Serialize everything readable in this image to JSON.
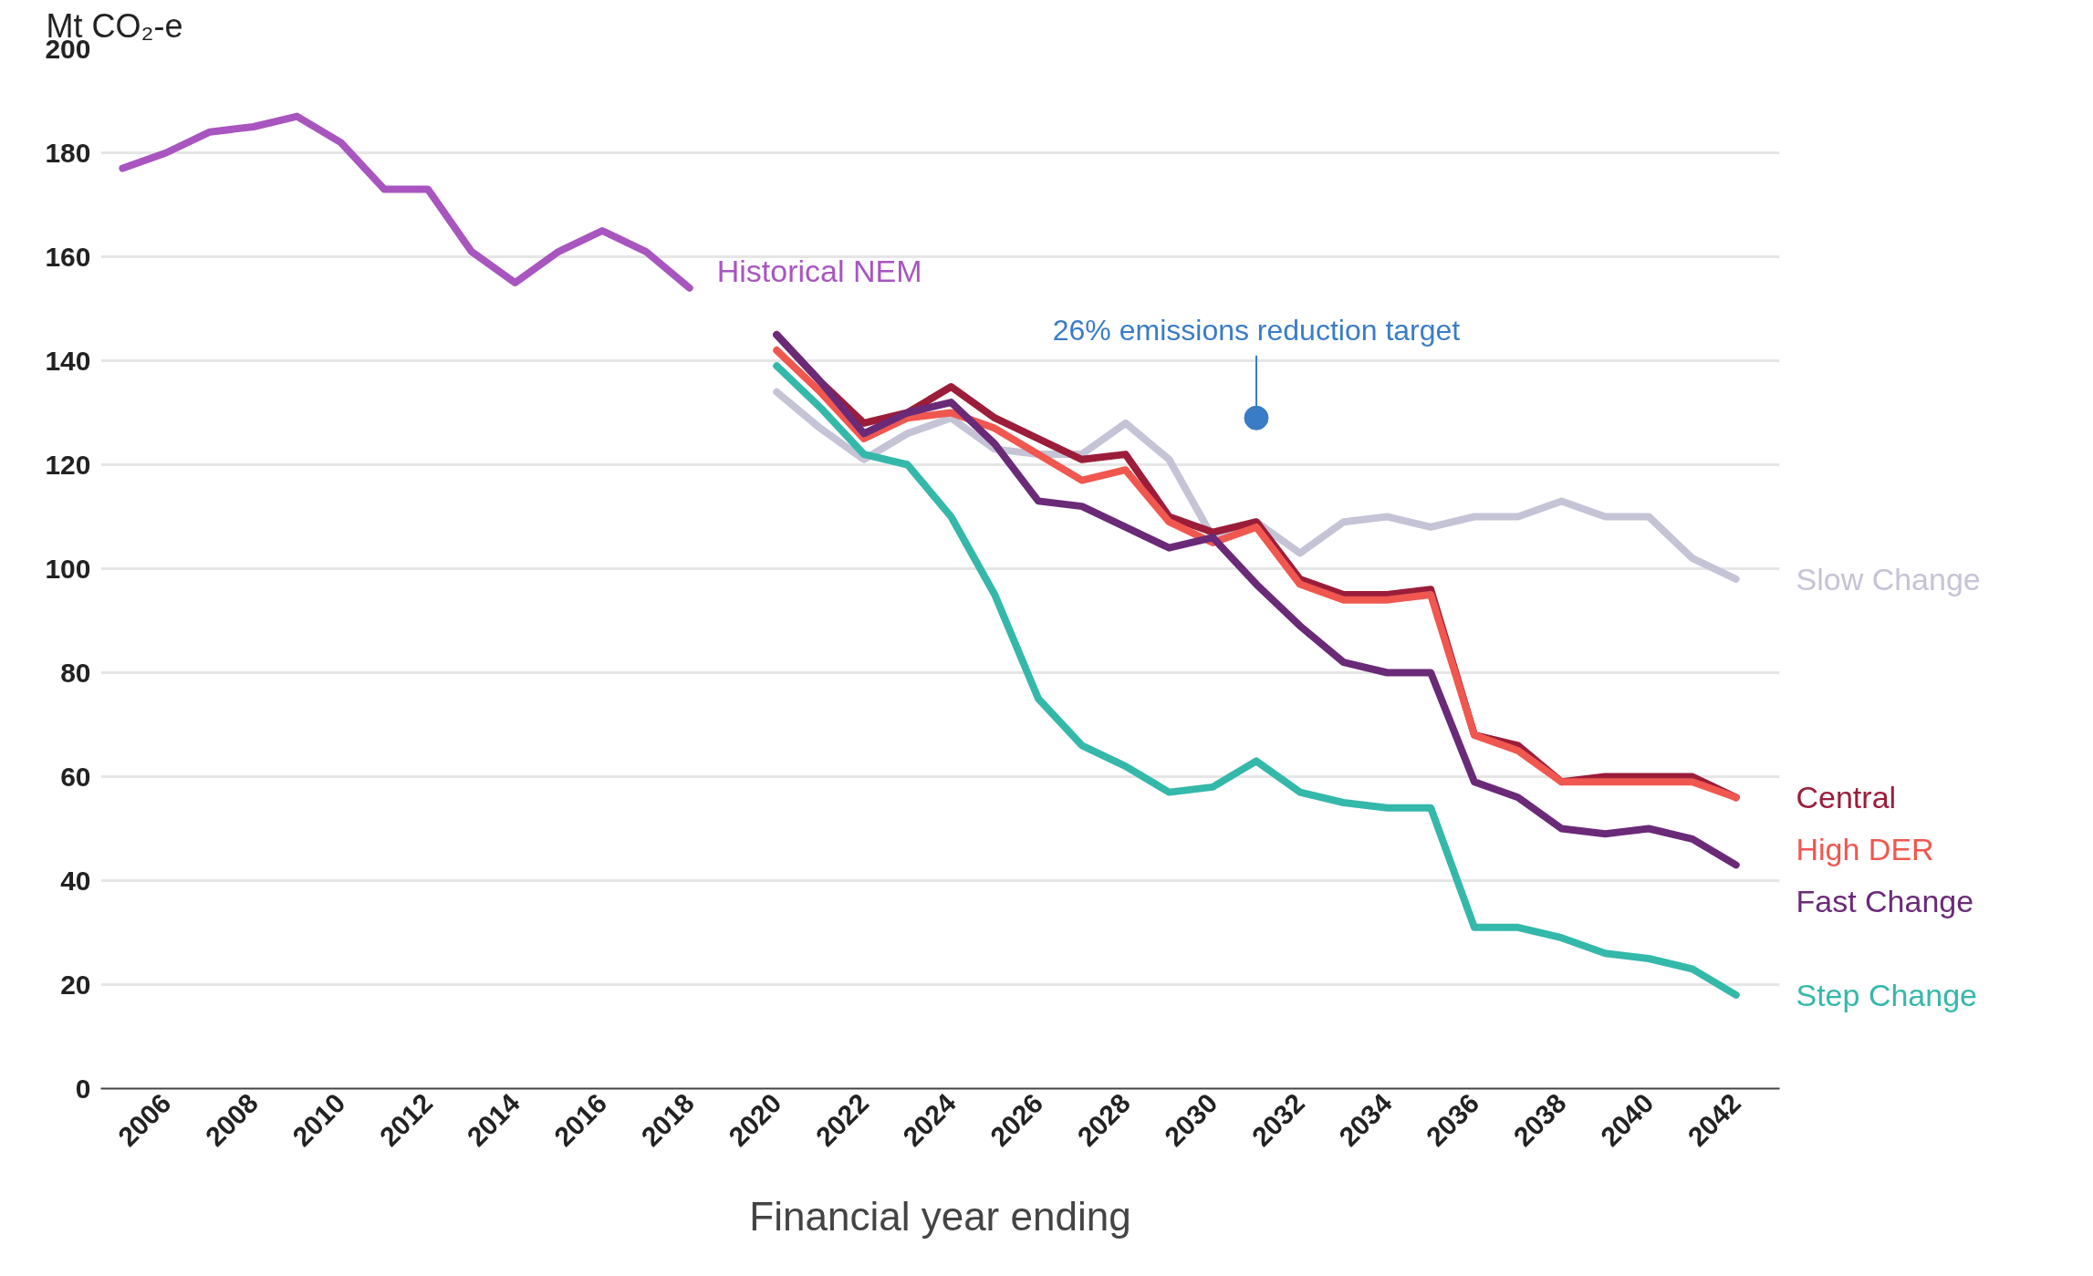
{
  "chart_data": {
    "type": "line",
    "ylabel": "Mt CO₂-e",
    "xlabel": "Financial year ending",
    "xlim": [
      2004.5,
      2043
    ],
    "xticks": [
      2006,
      2008,
      2010,
      2012,
      2014,
      2016,
      2018,
      2020,
      2022,
      2024,
      2026,
      2028,
      2030,
      2032,
      2034,
      2036,
      2038,
      2040,
      2042
    ],
    "ylim": [
      0,
      200
    ],
    "yticks": [
      0,
      20,
      40,
      60,
      80,
      100,
      120,
      140,
      160,
      180,
      200
    ],
    "grid": "y",
    "marker": "none",
    "line_style": "solid",
    "series": [
      {
        "name": "Historical NEM",
        "color": "#a855c0",
        "x": [
          2005,
          2006,
          2007,
          2008,
          2009,
          2010,
          2011,
          2012,
          2013,
          2014,
          2015,
          2016,
          2017,
          2018
        ],
        "values": [
          177,
          180,
          184,
          185,
          187,
          182,
          173,
          173,
          161,
          155,
          161,
          165,
          161,
          154
        ]
      },
      {
        "name": "Slow Change",
        "color": "#c5c3d6",
        "x": [
          2020,
          2021,
          2022,
          2023,
          2024,
          2025,
          2026,
          2027,
          2028,
          2029,
          2030,
          2031,
          2032,
          2033,
          2034,
          2035,
          2036,
          2037,
          2038,
          2039,
          2040,
          2041,
          2042
        ],
        "values": [
          134,
          127,
          121,
          126,
          129,
          123,
          122,
          122,
          128,
          121,
          106,
          109,
          103,
          109,
          110,
          108,
          110,
          110,
          113,
          110,
          110,
          102,
          98
        ]
      },
      {
        "name": "Central",
        "color": "#9b1d3a",
        "x": [
          2020,
          2021,
          2022,
          2023,
          2024,
          2025,
          2026,
          2027,
          2028,
          2029,
          2030,
          2031,
          2032,
          2033,
          2034,
          2035,
          2036,
          2037,
          2038,
          2039,
          2040,
          2041,
          2042
        ],
        "values": [
          145,
          136,
          128,
          130,
          135,
          129,
          125,
          121,
          122,
          110,
          107,
          109,
          98,
          95,
          95,
          96,
          68,
          66,
          59,
          60,
          60,
          60,
          56
        ]
      },
      {
        "name": "High DER",
        "color": "#f0574f",
        "x": [
          2020,
          2021,
          2022,
          2023,
          2024,
          2025,
          2026,
          2027,
          2028,
          2029,
          2030,
          2031,
          2032,
          2033,
          2034,
          2035,
          2036,
          2037,
          2038,
          2039,
          2040,
          2041,
          2042
        ],
        "values": [
          142,
          134,
          125,
          129,
          130,
          127,
          122,
          117,
          119,
          109,
          105,
          108,
          97,
          94,
          94,
          95,
          68,
          65,
          59,
          59,
          59,
          59,
          56
        ]
      },
      {
        "name": "Fast Change",
        "color": "#6a2a78",
        "x": [
          2020,
          2021,
          2022,
          2023,
          2024,
          2025,
          2026,
          2027,
          2028,
          2029,
          2030,
          2031,
          2032,
          2033,
          2034,
          2035,
          2036,
          2037,
          2038,
          2039,
          2040,
          2041,
          2042
        ],
        "values": [
          145,
          136,
          126,
          130,
          132,
          124,
          113,
          112,
          108,
          104,
          106,
          97,
          89,
          82,
          80,
          80,
          59,
          56,
          50,
          49,
          50,
          48,
          43
        ]
      },
      {
        "name": "Step Change",
        "color": "#34b8aa",
        "x": [
          2020,
          2021,
          2022,
          2023,
          2024,
          2025,
          2026,
          2027,
          2028,
          2029,
          2030,
          2031,
          2032,
          2033,
          2034,
          2035,
          2036,
          2037,
          2038,
          2039,
          2040,
          2041,
          2042
        ],
        "values": [
          139,
          131,
          122,
          120,
          110,
          95,
          75,
          66,
          62,
          57,
          58,
          63,
          57,
          55,
          54,
          54,
          31,
          31,
          29,
          26,
          25,
          23,
          18
        ]
      }
    ],
    "annotations": [
      {
        "text": "26% emissions reduction target",
        "x": 2031,
        "y": 129
      }
    ]
  }
}
